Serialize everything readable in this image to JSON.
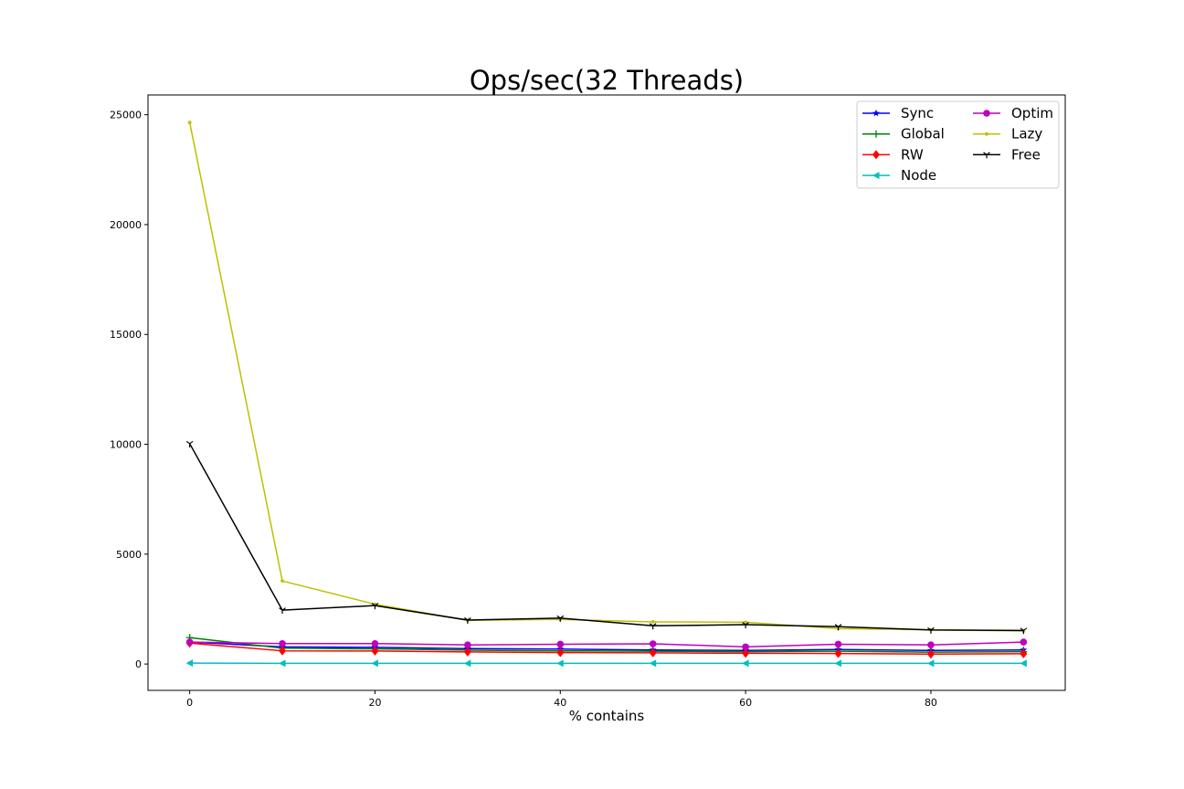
{
  "chart_data": {
    "type": "line",
    "title": "Ops/sec(32 Threads)",
    "xlabel": "% contains",
    "ylabel": "",
    "xlim": [
      -4.5,
      94.5
    ],
    "ylim": [
      -1200,
      25900
    ],
    "xticks": [
      0,
      20,
      40,
      60,
      80
    ],
    "xtick_labels": [
      "0",
      "20",
      "40",
      "60",
      "80"
    ],
    "yticks": [
      0,
      5000,
      10000,
      15000,
      20000,
      25000
    ],
    "ytick_labels": [
      "0",
      "5000",
      "10000",
      "15000",
      "20000",
      "25000"
    ],
    "grid": false,
    "legend_position": "top-right",
    "legend_columns": 2,
    "x": [
      0,
      10,
      20,
      30,
      40,
      50,
      60,
      70,
      80,
      90
    ],
    "series": [
      {
        "name": "Sync",
        "color": "#0000ff",
        "marker": "star",
        "values": [
          1000,
          780,
          760,
          700,
          680,
          640,
          620,
          660,
          620,
          640
        ]
      },
      {
        "name": "Global",
        "color": "#008000",
        "marker": "plus",
        "values": [
          1200,
          720,
          690,
          630,
          600,
          580,
          560,
          580,
          540,
          560
        ]
      },
      {
        "name": "RW",
        "color": "#ff0000",
        "marker": "diamond",
        "values": [
          950,
          600,
          590,
          550,
          520,
          510,
          490,
          480,
          450,
          470
        ]
      },
      {
        "name": "Node",
        "color": "#00bfbf",
        "marker": "triangle-left",
        "values": [
          40,
          30,
          30,
          30,
          30,
          30,
          30,
          30,
          30,
          30
        ]
      },
      {
        "name": "Optim",
        "color": "#bf00bf",
        "marker": "circle",
        "values": [
          1000,
          930,
          930,
          870,
          900,
          920,
          780,
          900,
          870,
          1000
        ]
      },
      {
        "name": "Lazy",
        "color": "#bfbf00",
        "marker": "point",
        "values": [
          24650,
          3780,
          2720,
          1990,
          2030,
          1920,
          1900,
          1610,
          1560,
          1500
        ]
      },
      {
        "name": "Free",
        "color": "#000000",
        "marker": "tri-down",
        "values": [
          10030,
          2450,
          2660,
          2000,
          2090,
          1740,
          1790,
          1700,
          1550,
          1530
        ]
      }
    ]
  }
}
